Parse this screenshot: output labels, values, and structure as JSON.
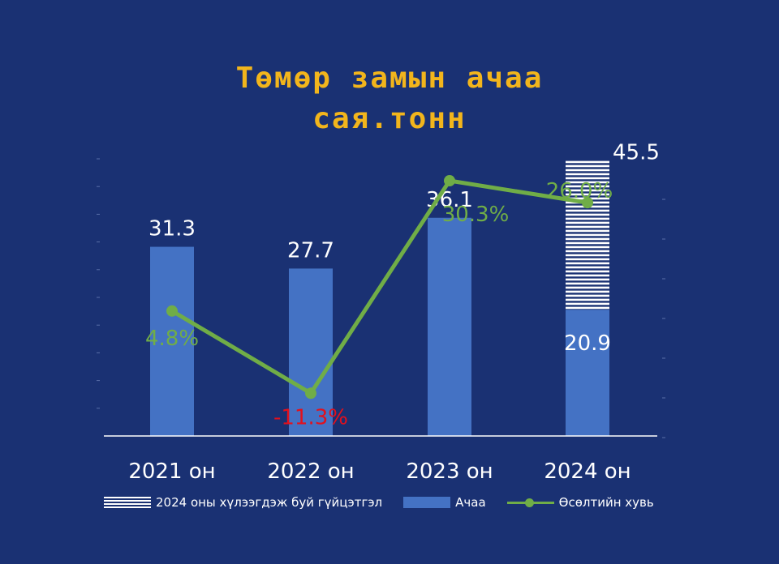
{
  "chart_data": {
    "type": "bar",
    "title_lines": [
      "Төмөр замын ачаа",
      "сая.тонн"
    ],
    "categories": [
      "2021 он",
      "2022 он",
      "2023 он",
      "2024 он"
    ],
    "ylim": [
      0,
      48
    ],
    "series": [
      {
        "name": "Ачаа",
        "type": "bar",
        "values": [
          31.3,
          27.7,
          36.1,
          20.9
        ],
        "labels": [
          "31.3",
          "27.7",
          "36.1",
          "20.9"
        ],
        "color": "#4472c4"
      },
      {
        "name": "2024 оны хүлээгдэж буй гүйцэтгэл",
        "type": "bar-stacked-striped",
        "category": "2024 он",
        "total": 45.5,
        "label": "45.5",
        "color": "#ffffff"
      },
      {
        "name": "Өсөлтийн хувь",
        "type": "line",
        "values": [
          4.8,
          -11.3,
          30.3,
          26.0
        ],
        "labels": [
          "4.8%",
          "-11.3%",
          "30.3%",
          "26.0%"
        ],
        "label_colors": [
          "#70ad47",
          "#e3101c",
          "#70ad47",
          "#70ad47"
        ],
        "ylim": [
          -13,
          33
        ],
        "color": "#70ad47"
      }
    ],
    "legend_position": "bottom",
    "grid": false
  },
  "legend": {
    "items": [
      {
        "label": "2024 оны хүлээгдэж буй гүйцэтгэл"
      },
      {
        "label": "Ачаа"
      },
      {
        "label": "Өсөлтийн хувь"
      }
    ]
  },
  "colors": {
    "background": "#1a3173",
    "title": "#f2b51c",
    "bar": "#4472c4",
    "line": "#70ad47",
    "negative_label": "#e3101c",
    "axis": "#ffffff"
  }
}
